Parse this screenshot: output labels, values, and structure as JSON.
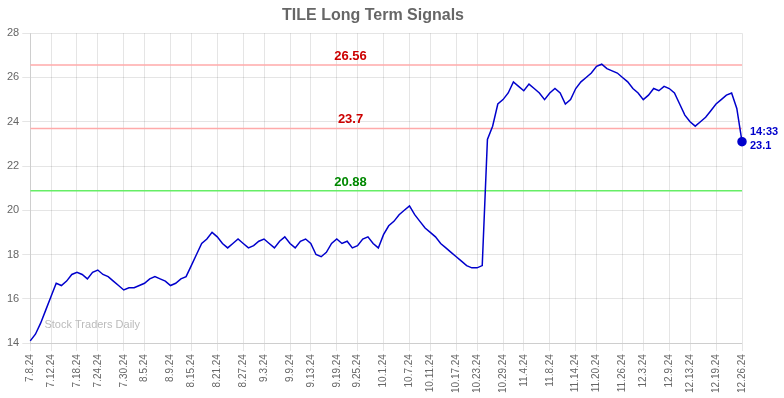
{
  "chart_data": {
    "type": "line",
    "title": "TILE Long Term Signals",
    "categories": [
      "7.8.24",
      null,
      null,
      null,
      "7.12.24",
      null,
      null,
      null,
      null,
      "7.18.24",
      null,
      null,
      null,
      "7.24.24",
      null,
      null,
      null,
      null,
      "7.30.24",
      null,
      null,
      null,
      "8.5.24",
      null,
      null,
      null,
      null,
      "8.9.24",
      null,
      null,
      null,
      "8.15.24",
      null,
      null,
      null,
      null,
      "8.21.24",
      null,
      null,
      null,
      null,
      "8.27.24",
      null,
      null,
      null,
      "9.3.24",
      null,
      null,
      null,
      null,
      "9.9.24",
      null,
      null,
      null,
      "9.13.24",
      null,
      null,
      null,
      null,
      "9.19.24",
      null,
      null,
      null,
      "9.25.24",
      null,
      null,
      null,
      null,
      "10.1.24",
      null,
      null,
      null,
      null,
      "10.7.24",
      null,
      null,
      null,
      "10.11.24",
      null,
      null,
      null,
      null,
      "10.17.24",
      null,
      null,
      null,
      "10.23.24",
      null,
      null,
      null,
      null,
      "10.29.24",
      null,
      null,
      null,
      "11.4.24",
      null,
      null,
      null,
      null,
      "11.8.24",
      null,
      null,
      null,
      null,
      "11.14.24",
      null,
      null,
      null,
      "11.20.24",
      null,
      null,
      null,
      null,
      "11.26.24",
      null,
      null,
      null,
      "12.3.24",
      null,
      null,
      null,
      null,
      "12.9.24",
      null,
      null,
      null,
      "12.13.24",
      null,
      null,
      null,
      null,
      "12.19.24",
      null,
      null,
      null,
      null,
      "12.26.24"
    ],
    "values": [
      14.1,
      14.4,
      14.9,
      15.5,
      16.1,
      16.7,
      16.6,
      16.8,
      17.1,
      17.2,
      17.1,
      16.9,
      17.2,
      17.3,
      17.1,
      17.0,
      16.8,
      16.6,
      16.4,
      16.5,
      16.5,
      16.6,
      16.7,
      16.9,
      17.0,
      16.9,
      16.8,
      16.6,
      16.7,
      16.9,
      17.0,
      17.5,
      18.0,
      18.5,
      18.7,
      19.0,
      18.8,
      18.5,
      18.3,
      18.5,
      18.7,
      18.5,
      18.3,
      18.4,
      18.6,
      18.7,
      18.5,
      18.3,
      18.6,
      18.8,
      18.5,
      18.3,
      18.6,
      18.7,
      18.5,
      18.0,
      17.9,
      18.1,
      18.5,
      18.7,
      18.5,
      18.6,
      18.3,
      18.4,
      18.7,
      18.8,
      18.5,
      18.3,
      18.9,
      19.3,
      19.5,
      19.8,
      20.0,
      20.2,
      19.8,
      19.5,
      19.2,
      19.0,
      18.8,
      18.5,
      18.3,
      18.1,
      17.9,
      17.7,
      17.5,
      17.4,
      17.4,
      17.5,
      23.2,
      23.8,
      24.8,
      25.0,
      25.3,
      25.8,
      25.6,
      25.4,
      25.7,
      25.5,
      25.3,
      25.0,
      25.3,
      25.5,
      25.3,
      24.8,
      25.0,
      25.5,
      25.8,
      26.0,
      26.2,
      26.5,
      26.6,
      26.4,
      26.3,
      26.2,
      26.0,
      25.8,
      25.5,
      25.3,
      25.0,
      25.2,
      25.5,
      25.4,
      25.6,
      25.5,
      25.3,
      24.8,
      24.3,
      24.0,
      23.8,
      24.0,
      24.2,
      24.5,
      24.8,
      25.0,
      25.2,
      25.3,
      24.6,
      23.1
    ],
    "color": "#0000cc",
    "ylim": [
      14,
      28
    ],
    "yticks": [
      14,
      16,
      18,
      20,
      22,
      24,
      26,
      28
    ],
    "grid": true,
    "annotations": [
      {
        "kind": "hline",
        "y": 26.56,
        "text": "26.56",
        "color": "#cc0000",
        "line_color": "#ffaaaa"
      },
      {
        "kind": "hline",
        "y": 23.7,
        "text": "23.7",
        "color": "#cc0000",
        "line_color": "#ffaaaa"
      },
      {
        "kind": "hline",
        "y": 20.88,
        "text": "20.88",
        "color": "#008800",
        "line_color": "#66ee66"
      },
      {
        "kind": "end_above",
        "text": "14:33",
        "color": "#0000cc"
      },
      {
        "kind": "end_below",
        "text": "23.1",
        "color": "#0000cc"
      },
      {
        "kind": "watermark",
        "text": "Stock Traders Daily",
        "color": "#bbbbbb"
      }
    ]
  }
}
